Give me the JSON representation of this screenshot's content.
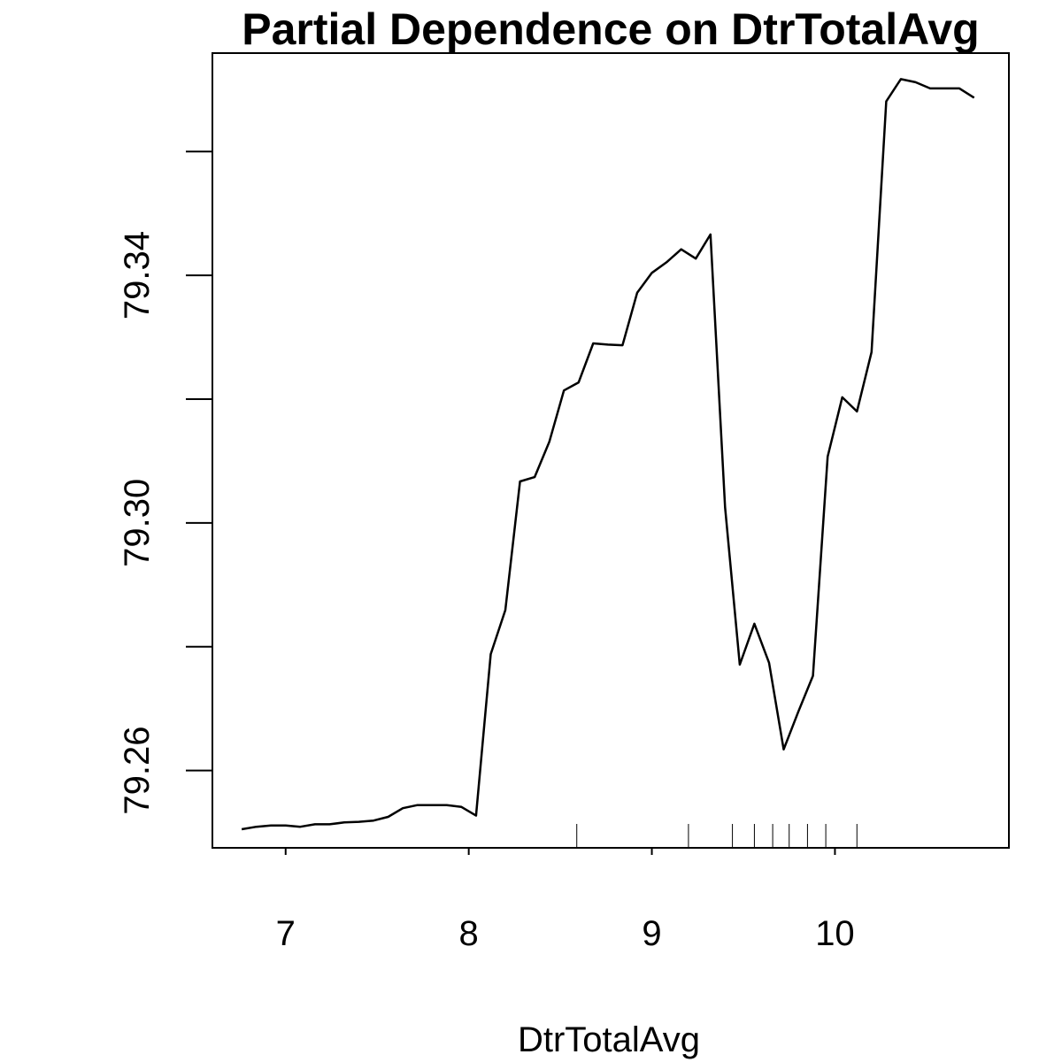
{
  "chart_data": {
    "type": "line",
    "title": "Partial Dependence on DtrTotalAvg",
    "xlabel": "DtrTotalAvg",
    "ylabel": "",
    "xlim": [
      6.6,
      10.95
    ],
    "ylim": [
      79.2475,
      79.3759
    ],
    "x_ticks": [
      7,
      8,
      9,
      10
    ],
    "x_tick_labels": [
      "7",
      "8",
      "9",
      "10"
    ],
    "y_ticks": [
      79.26,
      79.28,
      79.3,
      79.32,
      79.34,
      79.36
    ],
    "y_tick_labels": [
      "79.26",
      "",
      "79.30",
      "",
      "79.34",
      ""
    ],
    "grid": false,
    "series": [
      {
        "color": "#000000",
        "x": [
          6.76,
          6.84,
          6.92,
          7.0,
          7.08,
          7.16,
          7.24,
          7.32,
          7.4,
          7.48,
          7.56,
          7.64,
          7.72,
          7.8,
          7.88,
          7.96,
          8.04,
          8.12,
          8.2,
          8.28,
          8.36,
          8.44,
          8.52,
          8.6,
          8.68,
          8.76,
          8.84,
          8.92,
          9.0,
          9.08,
          9.16,
          9.24,
          9.32,
          9.4,
          9.48,
          9.56,
          9.64,
          9.72,
          9.8,
          9.88,
          9.96,
          10.04,
          10.12,
          10.2,
          10.28,
          10.36,
          10.44,
          10.52,
          10.6,
          10.68,
          10.76
        ],
        "y": [
          79.2505,
          79.2509,
          79.2511,
          79.2511,
          79.2509,
          79.2513,
          79.2513,
          79.2516,
          79.2517,
          79.2519,
          79.2525,
          79.2539,
          79.2544,
          79.2544,
          79.2544,
          79.2541,
          79.2527,
          79.2788,
          79.2859,
          79.3067,
          79.3074,
          79.3131,
          79.3214,
          79.3227,
          79.329,
          79.3288,
          79.3287,
          79.3372,
          79.3404,
          79.3421,
          79.3442,
          79.3427,
          79.3466,
          79.3025,
          79.2771,
          79.2837,
          79.2774,
          79.2634,
          79.2695,
          79.2753,
          79.3107,
          79.3203,
          79.318,
          79.3276,
          79.3681,
          79.3717,
          79.3712,
          79.3702,
          79.3702,
          79.3702,
          79.3687
        ]
      }
    ],
    "rug": [
      8.59,
      9.2,
      9.44,
      9.56,
      9.66,
      9.75,
      9.85,
      9.95,
      10.12
    ]
  }
}
